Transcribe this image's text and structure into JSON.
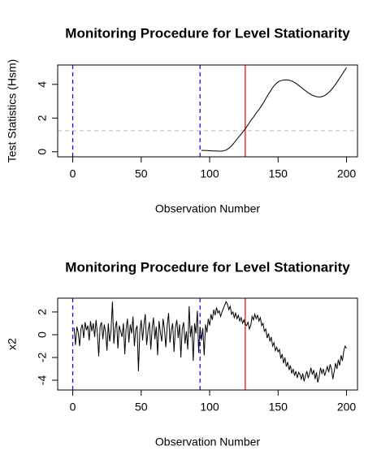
{
  "chart_data": [
    {
      "type": "line",
      "title": "Monitoring Procedure for Level Stationarity",
      "xlabel": "Observation Number",
      "ylabel": "Test Statistics (Hsm)",
      "xlim": [
        -11,
        208
      ],
      "xticks": [
        0,
        50,
        100,
        150,
        200
      ],
      "ylim": [
        -0.3,
        5.15
      ],
      "yticks": [
        0,
        2,
        4
      ],
      "color": "#000000",
      "x": [
        94,
        96,
        98,
        100,
        102,
        104,
        106,
        108,
        110,
        112,
        114,
        116,
        118,
        120,
        122,
        124,
        126,
        128,
        130,
        132,
        134,
        136,
        138,
        140,
        142,
        144,
        146,
        148,
        150,
        152,
        154,
        156,
        158,
        160,
        162,
        164,
        166,
        168,
        170,
        172,
        174,
        176,
        178,
        180,
        182,
        184,
        186,
        188,
        190,
        192,
        194,
        196,
        198,
        200
      ],
      "values": [
        0.08,
        0.08,
        0.07,
        0.06,
        0.05,
        0.05,
        0.04,
        0.04,
        0.05,
        0.1,
        0.2,
        0.35,
        0.55,
        0.75,
        0.95,
        1.15,
        1.35,
        1.6,
        1.85,
        2.05,
        2.3,
        2.5,
        2.75,
        3.0,
        3.3,
        3.55,
        3.8,
        4.0,
        4.15,
        4.22,
        4.26,
        4.27,
        4.25,
        4.2,
        4.12,
        4.0,
        3.88,
        3.75,
        3.62,
        3.5,
        3.4,
        3.32,
        3.27,
        3.25,
        3.27,
        3.33,
        3.45,
        3.6,
        3.8,
        4.0,
        4.25,
        4.5,
        4.75,
        5.0
      ],
      "vlines": [
        {
          "value": 0,
          "color": "#0000ff",
          "dashed": true
        },
        {
          "value": 93,
          "color": "#0000ff",
          "dashed": true
        },
        {
          "value": 126,
          "color": "#e00000",
          "dashed": false
        }
      ],
      "hlines": [
        {
          "value": 1.25,
          "color": "#bbbbbb",
          "dashed": true
        }
      ]
    },
    {
      "type": "line",
      "title": "Monitoring Procedure for Level Stationarity",
      "xlabel": "Observation Number",
      "ylabel": "x2",
      "xlim": [
        -11,
        208
      ],
      "xticks": [
        0,
        50,
        100,
        150,
        200
      ],
      "ylim": [
        -4.86,
        3.21
      ],
      "yticks": [
        -4,
        -2,
        0,
        2
      ],
      "color": "#000000",
      "x": [
        1,
        2,
        3,
        4,
        5,
        6,
        7,
        8,
        9,
        10,
        11,
        12,
        13,
        14,
        15,
        16,
        17,
        18,
        19,
        20,
        21,
        22,
        23,
        24,
        25,
        26,
        27,
        28,
        29,
        30,
        31,
        32,
        33,
        34,
        35,
        36,
        37,
        38,
        39,
        40,
        41,
        42,
        43,
        44,
        45,
        46,
        47,
        48,
        49,
        50,
        51,
        52,
        53,
        54,
        55,
        56,
        57,
        58,
        59,
        60,
        61,
        62,
        63,
        64,
        65,
        66,
        67,
        68,
        69,
        70,
        71,
        72,
        73,
        74,
        75,
        76,
        77,
        78,
        79,
        80,
        81,
        82,
        83,
        84,
        85,
        86,
        87,
        88,
        89,
        90,
        91,
        92,
        93,
        94,
        95,
        96,
        97,
        98,
        99,
        100,
        101,
        102,
        103,
        104,
        105,
        106,
        107,
        108,
        109,
        110,
        111,
        112,
        113,
        114,
        115,
        116,
        117,
        118,
        119,
        120,
        121,
        122,
        123,
        124,
        125,
        126,
        127,
        128,
        129,
        130,
        131,
        132,
        133,
        134,
        135,
        136,
        137,
        138,
        139,
        140,
        141,
        142,
        143,
        144,
        145,
        146,
        147,
        148,
        149,
        150,
        151,
        152,
        153,
        154,
        155,
        156,
        157,
        158,
        159,
        160,
        161,
        162,
        163,
        164,
        165,
        166,
        167,
        168,
        169,
        170,
        171,
        172,
        173,
        174,
        175,
        176,
        177,
        178,
        179,
        180,
        181,
        182,
        183,
        184,
        185,
        186,
        187,
        188,
        189,
        190,
        191,
        192,
        193,
        194,
        195,
        196,
        197,
        198,
        199,
        200
      ],
      "values": [
        0.6,
        -0.9,
        0.7,
        0.2,
        -1.0,
        0.5,
        0.9,
        -0.3,
        1.1,
        0.4,
        0.8,
        -0.5,
        1.2,
        0.3,
        1.0,
        -0.2,
        1.3,
        0.1,
        -1.9,
        0.7,
        1.1,
        -0.4,
        0.9,
        0.2,
        -1.4,
        1.0,
        -0.6,
        0.4,
        2.9,
        -0.8,
        0.6,
        1.2,
        -1.2,
        0.8,
        0.3,
        -0.2,
        1.0,
        -1.7,
        0.5,
        1.4,
        -0.7,
        0.9,
        0.1,
        1.6,
        -1.0,
        0.4,
        0.8,
        -3.2,
        0.2,
        1.3,
        -0.5,
        0.9,
        1.8,
        -0.9,
        0.3,
        1.1,
        -1.3,
        0.6,
        1.5,
        -0.4,
        0.7,
        -1.8,
        1.2,
        0.2,
        -0.6,
        1.4,
        0.5,
        -1.1,
        0.8,
        1.9,
        -0.7,
        0.4,
        1.0,
        -1.5,
        0.6,
        1.3,
        -0.3,
        0.9,
        -2.0,
        0.5,
        1.1,
        -0.8,
        0.3,
        -1.3,
        2.5,
        -0.2,
        0.8,
        -2.3,
        1.0,
        0.1,
        2.1,
        -1.6,
        0.7,
        -0.5,
        0.6,
        -1.8,
        0.9,
        0.2,
        1.4,
        0.8,
        1.8,
        1.3,
        2.2,
        1.7,
        2.4,
        1.9,
        2.1,
        1.6,
        2.0,
        2.3,
        2.6,
        2.9,
        2.7,
        2.2,
        2.5,
        1.8,
        2.0,
        1.5,
        1.9,
        1.4,
        1.7,
        1.2,
        1.5,
        1.0,
        1.3,
        0.9,
        0.8,
        1.1,
        0.5,
        0.8,
        1.6,
        1.3,
        1.8,
        1.4,
        1.7,
        1.2,
        1.5,
        0.8,
        1.0,
        0.3,
        0.5,
        -0.3,
        0.1,
        -0.6,
        -0.2,
        -1.0,
        -0.7,
        -1.4,
        -1.1,
        -1.5,
        -1.3,
        -2.1,
        -1.7,
        -2.5,
        -2.0,
        -2.8,
        -2.4,
        -3.1,
        -2.7,
        -3.4,
        -3.0,
        -3.6,
        -3.2,
        -3.8,
        -3.3,
        -3.5,
        -3.9,
        -3.4,
        -4.1,
        -3.6,
        -3.2,
        -3.8,
        -3.4,
        -2.9,
        -3.5,
        -3.1,
        -3.9,
        -3.3,
        -4.2,
        -3.7,
        -2.9,
        -3.4,
        -3.0,
        -3.6,
        -3.2,
        -2.8,
        -3.3,
        -2.6,
        -3.0,
        -3.9,
        -3.2,
        -2.5,
        -3.0,
        -2.2,
        -2.7,
        -1.8,
        -2.3,
        -1.4,
        -1.0,
        -1.2
      ],
      "vlines": [
        {
          "value": 0,
          "color": "#0000ff",
          "dashed": true
        },
        {
          "value": 93,
          "color": "#0000ff",
          "dashed": true
        },
        {
          "value": 126,
          "color": "#e00000",
          "dashed": false
        }
      ],
      "hlines": []
    }
  ]
}
